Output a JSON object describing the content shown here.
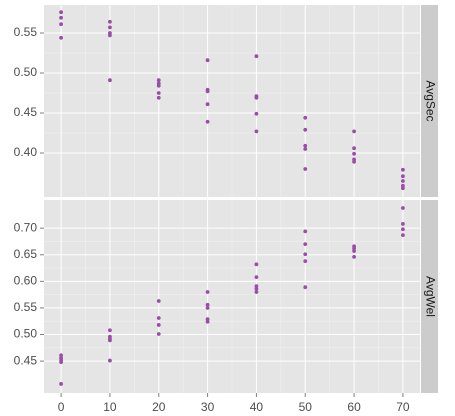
{
  "chart_data": [
    {
      "type": "scatter",
      "facet_label": "AvgSec",
      "color": "#9b4ea8",
      "x": [
        0,
        0,
        0,
        0,
        10,
        10,
        10,
        10,
        10,
        20,
        20,
        20,
        20,
        20,
        30,
        30,
        30,
        30,
        30,
        40,
        40,
        40,
        40,
        40,
        50,
        50,
        50,
        50,
        50,
        60,
        60,
        60,
        60,
        60,
        70,
        70,
        70,
        70,
        70
      ],
      "y": [
        0.576,
        0.569,
        0.561,
        0.544,
        0.564,
        0.557,
        0.55,
        0.547,
        0.491,
        0.491,
        0.487,
        0.484,
        0.475,
        0.469,
        0.516,
        0.479,
        0.477,
        0.461,
        0.439,
        0.521,
        0.471,
        0.469,
        0.449,
        0.427,
        0.444,
        0.429,
        0.409,
        0.405,
        0.38,
        0.427,
        0.406,
        0.399,
        0.392,
        0.389,
        0.379,
        0.371,
        0.365,
        0.359,
        0.356
      ],
      "xlim": [
        -3.5,
        73.5
      ],
      "ylim": [
        0.345,
        0.585
      ],
      "yticks": [
        {
          "value": 0.4,
          "label": "0.40"
        },
        0.45,
        {
          "value": 0.5,
          "label": "0.50"
        },
        0.55
      ]
    },
    {
      "type": "scatter",
      "facet_label": "AvgWel",
      "color": "#9b4ea8",
      "x": [
        0,
        0,
        0,
        0,
        0,
        10,
        10,
        10,
        10,
        10,
        20,
        20,
        20,
        20,
        30,
        30,
        30,
        30,
        30,
        40,
        40,
        40,
        40,
        40,
        50,
        50,
        50,
        50,
        50,
        60,
        60,
        60,
        60,
        70,
        70,
        70,
        70
      ],
      "y": [
        0.461,
        0.456,
        0.452,
        0.448,
        0.407,
        0.508,
        0.496,
        0.492,
        0.489,
        0.451,
        0.563,
        0.531,
        0.518,
        0.501,
        0.58,
        0.556,
        0.55,
        0.529,
        0.524,
        0.632,
        0.608,
        0.591,
        0.586,
        0.58,
        0.694,
        0.67,
        0.651,
        0.638,
        0.589,
        0.666,
        0.662,
        0.657,
        0.646,
        0.738,
        0.708,
        0.698,
        0.687
      ],
      "xlim": [
        -3.5,
        73.5
      ],
      "ylim": [
        0.39,
        0.753
      ],
      "xticks": [
        0,
        10,
        20,
        30,
        40,
        50,
        60,
        70
      ],
      "yticks": [
        0.45,
        {
          "value": 0.5,
          "label": "0.50"
        },
        0.55,
        {
          "value": 0.6,
          "label": "0.60"
        },
        0.65,
        {
          "value": 0.7,
          "label": "0.70"
        }
      ]
    }
  ]
}
